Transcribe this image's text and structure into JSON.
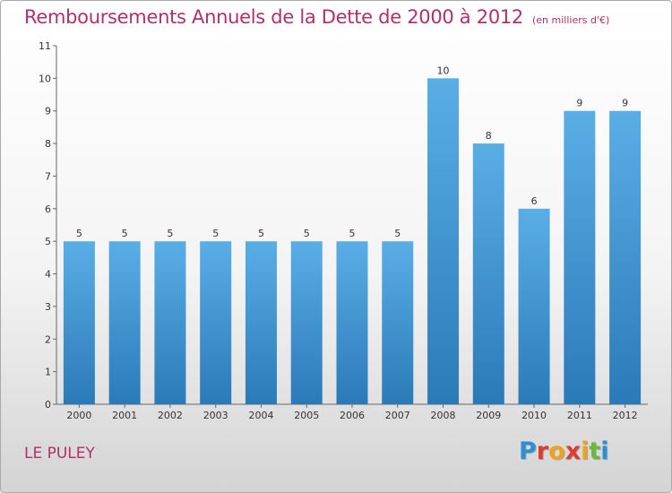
{
  "header": {
    "title": "Remboursements Annuels de la Dette de 2000 à 2012",
    "subtitle": "(en milliers d'€)"
  },
  "footer": {
    "commune": "LE PULEY",
    "logo_text": "Proxiti"
  },
  "colors": {
    "accent": "#b0306a",
    "bar_top": "#5aaee6",
    "bar_bottom": "#2a7ab8",
    "logo": [
      "#2e8fd6",
      "#e23a2e",
      "#f3a11c",
      "#e23a2e",
      "#f3a11c",
      "#6bb83a",
      "#2e8fd6"
    ]
  },
  "chart_data": {
    "type": "bar",
    "title": "Remboursements Annuels de la Dette de 2000 à 2012",
    "subtitle": "(en milliers d'€)",
    "categories": [
      "2000",
      "2001",
      "2002",
      "2003",
      "2004",
      "2005",
      "2006",
      "2007",
      "2008",
      "2009",
      "2010",
      "2011",
      "2012"
    ],
    "values": [
      5,
      5,
      5,
      5,
      5,
      5,
      5,
      5,
      10,
      8,
      6,
      9,
      9
    ],
    "data_labels": [
      "5",
      "5",
      "5",
      "5",
      "5",
      "5",
      "5",
      "5",
      "10",
      "8",
      "6",
      "9",
      "9"
    ],
    "yticks": [
      "0",
      "1",
      "2",
      "3",
      "4",
      "5",
      "6",
      "7",
      "8",
      "9",
      "10",
      "11"
    ],
    "ylim": [
      0,
      11
    ],
    "xlabel": "",
    "ylabel": "",
    "grid": false,
    "legend": "none"
  }
}
